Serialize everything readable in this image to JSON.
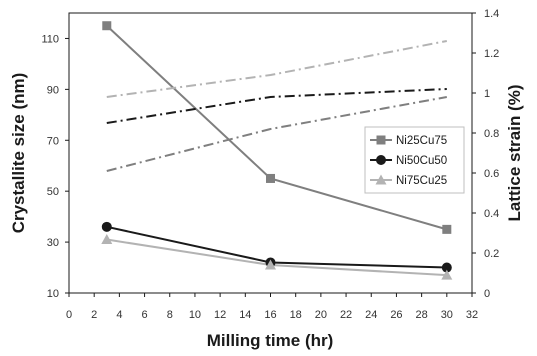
{
  "chart_data": {
    "type": "line",
    "xlabel": "Milling time (hr)",
    "ylabel": "Crystallite size (nm)",
    "y2label": "Lattice strain (%)",
    "xlim": [
      0,
      32
    ],
    "ylim": [
      10,
      120
    ],
    "y2lim": [
      0,
      1.4
    ],
    "xticks": [
      0,
      2,
      4,
      6,
      8,
      10,
      12,
      14,
      16,
      18,
      20,
      22,
      24,
      26,
      28,
      30,
      32
    ],
    "yticks": [
      10,
      30,
      50,
      70,
      90,
      110
    ],
    "y2ticks": [
      "0",
      "0.2",
      "0.4",
      "0.6",
      "0.8",
      "1",
      "1.2",
      "1.4"
    ],
    "grid": false,
    "legend_position": "right-middle",
    "legend": [
      "Ni25Cu75",
      "Ni50Cu50",
      "Ni75Cu25"
    ],
    "series": [
      {
        "name": "Ni25Cu75",
        "axis": "left",
        "style": "solid",
        "marker": "square",
        "color": "#7f7f7f",
        "x": [
          3,
          16,
          30
        ],
        "values": [
          115,
          55,
          35
        ]
      },
      {
        "name": "Ni50Cu50",
        "axis": "left",
        "style": "solid",
        "marker": "circle",
        "color": "#1a1a1a",
        "x": [
          3,
          16,
          30
        ],
        "values": [
          36,
          22,
          20
        ]
      },
      {
        "name": "Ni75Cu25",
        "axis": "left",
        "style": "solid",
        "marker": "triangle",
        "color": "#b3b3b3",
        "x": [
          3,
          16,
          30
        ],
        "values": [
          31,
          21,
          17
        ]
      },
      {
        "name": "",
        "axis": "right",
        "style": "dashdot",
        "color": "#7f7f7f",
        "x": [
          3,
          16,
          30
        ],
        "values": [
          0.61,
          0.82,
          0.98
        ]
      },
      {
        "name": "",
        "axis": "right",
        "style": "dashdot",
        "color": "#1a1a1a",
        "x": [
          3,
          16,
          30
        ],
        "values": [
          0.85,
          0.98,
          1.02
        ]
      },
      {
        "name": "",
        "axis": "right",
        "style": "dashdot",
        "color": "#b3b3b3",
        "x": [
          3,
          16,
          30
        ],
        "values": [
          0.98,
          1.09,
          1.26
        ]
      }
    ]
  }
}
